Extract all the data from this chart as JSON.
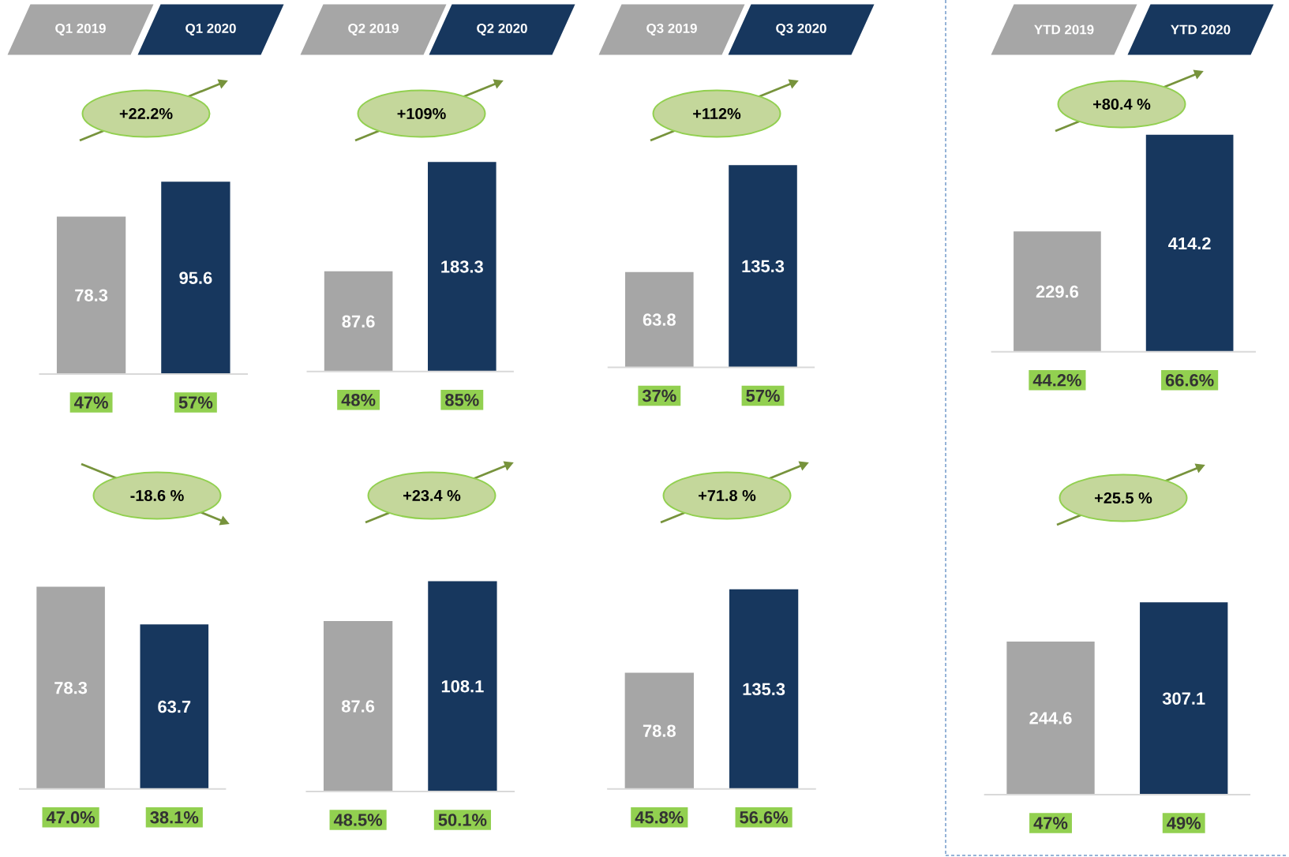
{
  "chart_data": [
    {
      "type": "bar",
      "categories": [
        "Q1 2019",
        "Q1 2020"
      ],
      "values": [
        78.3,
        95.6
      ],
      "colors": [
        "#a6a6a6",
        "#17375e"
      ],
      "data_labels": true,
      "annotations": [
        "+22.2%",
        "47%",
        "57%"
      ]
    },
    {
      "type": "bar",
      "categories": [
        "Q2 2019",
        "Q2 2020"
      ],
      "values": [
        87.6,
        183.3
      ],
      "colors": [
        "#a6a6a6",
        "#17375e"
      ],
      "data_labels": true,
      "annotations": [
        "+109%",
        "48%",
        "85%"
      ]
    },
    {
      "type": "bar",
      "categories": [
        "Q3 2019",
        "Q3 2020"
      ],
      "values": [
        63.8,
        135.3
      ],
      "colors": [
        "#a6a6a6",
        "#17375e"
      ],
      "data_labels": true,
      "annotations": [
        "+112%",
        "37%",
        "57%"
      ]
    },
    {
      "type": "bar",
      "categories": [
        "YTD 2019",
        "YTD 2020"
      ],
      "values": [
        229.6,
        414.2
      ],
      "colors": [
        "#a6a6a6",
        "#17375e"
      ],
      "data_labels": true,
      "annotations": [
        "+80.4 %",
        "44.2%",
        "66.6%"
      ]
    },
    {
      "type": "bar",
      "categories": [
        null,
        null
      ],
      "values": [
        78.3,
        63.7
      ],
      "colors": [
        "#a6a6a6",
        "#17375e"
      ],
      "data_labels": true,
      "annotations": [
        "-18.6 %",
        "47.0%",
        "38.1%"
      ]
    },
    {
      "type": "bar",
      "categories": [
        null,
        null
      ],
      "values": [
        87.6,
        108.1
      ],
      "colors": [
        "#a6a6a6",
        "#17375e"
      ],
      "data_labels": true,
      "annotations": [
        "+23.4 %",
        "48.5%",
        "50.1%"
      ]
    },
    {
      "type": "bar",
      "categories": [
        null,
        null
      ],
      "values": [
        78.8,
        135.3
      ],
      "colors": [
        "#a6a6a6",
        "#17375e"
      ],
      "data_labels": true,
      "annotations": [
        "+71.8 %",
        "45.8%",
        "56.6%"
      ]
    },
    {
      "type": "bar",
      "categories": [
        null,
        null
      ],
      "values": [
        244.6,
        307.1
      ],
      "colors": [
        "#a6a6a6",
        "#17375e"
      ],
      "data_labels": true,
      "annotations": [
        "+25.5 %",
        "47%",
        "49%"
      ]
    }
  ]
}
